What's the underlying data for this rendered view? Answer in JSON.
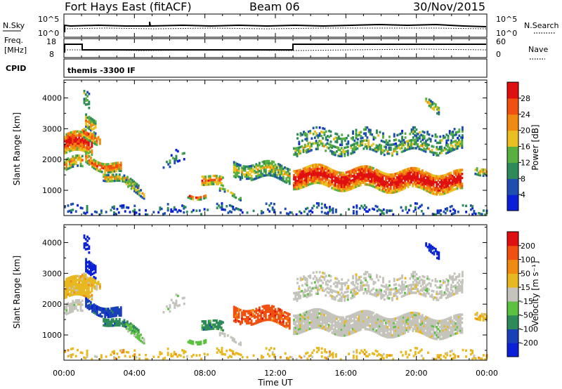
{
  "header": {
    "title_left": "Fort Hays East (fitACF)",
    "title_mid": "Beam 06",
    "title_right": "30/Nov/2015"
  },
  "strips": {
    "nsky_label": "N.Sky",
    "nsky_ticks": [
      "10^5",
      "10^0"
    ],
    "nsearch_label": "N.Search",
    "nsearch_ticks": [
      "10^5",
      "10^0"
    ],
    "freq_label_1": "Freq.",
    "freq_label_2": "[MHz]",
    "freq_ticks": [
      "18",
      "8"
    ],
    "nave_label": "Nave",
    "nave_ticks": [
      "60",
      "0"
    ],
    "cpid_label": "CPID",
    "cpid_value": "themis -3300 IF"
  },
  "colors": {
    "power_scale": [
      "#0a20d8",
      "#1e4fb0",
      "#2e8a58",
      "#58b040",
      "#e8c020",
      "#f08a10",
      "#f05010",
      "#e01010"
    ],
    "velocity_scale": [
      "#0a20d8",
      "#1a40b8",
      "#2e8a58",
      "#5cc040",
      "#c4c4bc",
      "#e8b820",
      "#f08a10",
      "#f05010",
      "#e01010"
    ]
  },
  "chart_data": [
    {
      "type": "heatmap",
      "panel": "power",
      "ylabel": "Slant Range [km]",
      "xlabel": "",
      "yticks": [
        "1000",
        "2000",
        "3000",
        "4000"
      ],
      "ylim": [
        180,
        4580
      ],
      "xticks": [
        "00:00",
        "04:00",
        "08:00",
        "12:00",
        "16:00",
        "20:00",
        "00:00"
      ],
      "xlim_hours": [
        0,
        24
      ],
      "colorbar_label": "Power [dB]",
      "colorbar_ticks": [
        "28",
        "24",
        "20",
        "16",
        "12",
        "8",
        "4"
      ],
      "colorbar_range": [
        0,
        32
      ]
    },
    {
      "type": "heatmap",
      "panel": "velocity",
      "ylabel": "Slant Range [km]",
      "xlabel": "Time UT",
      "yticks": [
        "1000",
        "2000",
        "3000",
        "4000"
      ],
      "ylim": [
        180,
        4580
      ],
      "xticks": [
        "00:00",
        "04:00",
        "08:00",
        "12:00",
        "16:00",
        "20:00",
        "00:00"
      ],
      "xlim_hours": [
        0,
        24
      ],
      "colorbar_label": "Velocity [m s⁻¹]",
      "colorbar_ticks": [
        "200",
        "100",
        "50",
        "15",
        "-15",
        "-50",
        "-100",
        "-200"
      ]
    }
  ]
}
